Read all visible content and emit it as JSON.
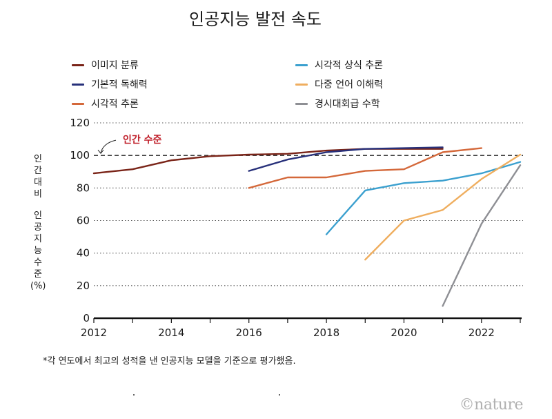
{
  "title": "인공지능 발전 속도",
  "ylabel": "인간대비 인공지능수준(%)",
  "footnote": "*각 연도에서 최고의 성적을 낸 인공지능 모델을 기준으로 평가했음.",
  "watermark": "©nature",
  "chart_data": {
    "type": "line",
    "title": "인공지능 발전 속도",
    "xlabel": "",
    "ylabel": "인간대비 인공지능수준(%)",
    "xlim": [
      2012,
      2023
    ],
    "ylim": [
      0,
      120
    ],
    "xticks": [
      2012,
      2014,
      2016,
      2018,
      2020,
      2022
    ],
    "yticks": [
      0,
      20,
      40,
      60,
      80,
      100,
      120
    ],
    "grid": "horizontal dotted",
    "reference_line": {
      "value": 100,
      "label": "인간 수준"
    },
    "legend": {
      "position": "top"
    },
    "series": [
      {
        "name": "이미지 분류",
        "color": "#7a2418",
        "x": [
          2012,
          2013,
          2014,
          2015,
          2016,
          2017,
          2018,
          2019,
          2020,
          2021
        ],
        "y": [
          89,
          91.5,
          97,
          99.5,
          100.5,
          101,
          103,
          104,
          104,
          104
        ]
      },
      {
        "name": "기본적 독해력",
        "color": "#27307a",
        "x": [
          2016,
          2017,
          2018,
          2019,
          2020,
          2021
        ],
        "y": [
          90.5,
          97.5,
          102,
          104,
          104.5,
          105
        ]
      },
      {
        "name": "시각적 추론",
        "color": "#d4683a",
        "x": [
          2016,
          2017,
          2018,
          2019,
          2020,
          2021,
          2022
        ],
        "y": [
          80,
          86.5,
          86.5,
          90.5,
          91.5,
          102,
          104.5
        ]
      },
      {
        "name": "시각적 상식 추론",
        "color": "#3ba0cf",
        "x": [
          2018,
          2019,
          2020,
          2021,
          2022,
          2023
        ],
        "y": [
          51.5,
          78.5,
          83,
          84.5,
          89,
          96
        ]
      },
      {
        "name": "다중 언어 이해력",
        "color": "#efae5f",
        "x": [
          2019,
          2020,
          2021,
          2022,
          2023
        ],
        "y": [
          36,
          60,
          66.5,
          85.5,
          100.5
        ]
      },
      {
        "name": "경시대회급 수학",
        "color": "#8e8f94",
        "x": [
          2021,
          2022,
          2023
        ],
        "y": [
          7.5,
          58,
          94
        ]
      }
    ]
  }
}
